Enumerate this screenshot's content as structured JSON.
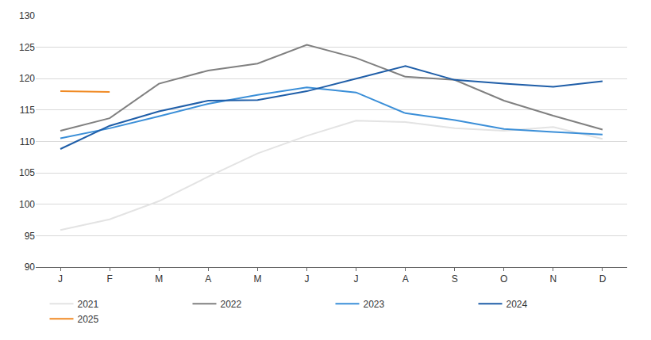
{
  "chart_data": {
    "type": "line",
    "categories": [
      "J",
      "F",
      "M",
      "A",
      "M",
      "J",
      "J",
      "A",
      "S",
      "O",
      "N",
      "D"
    ],
    "series": [
      {
        "name": "2021",
        "color": "#e3e3e3",
        "values": [
          95.9,
          97.6,
          100.5,
          104.4,
          108.1,
          110.9,
          113.3,
          113.1,
          112.1,
          111.7,
          112.3,
          110.4
        ]
      },
      {
        "name": "2022",
        "color": "#808080",
        "values": [
          111.7,
          113.7,
          119.2,
          121.3,
          122.4,
          125.4,
          123.3,
          120.3,
          119.8,
          116.5,
          114.1,
          111.9
        ]
      },
      {
        "name": "2023",
        "color": "#3b8fd8",
        "values": [
          110.5,
          112.1,
          114.0,
          116.0,
          117.4,
          118.6,
          117.8,
          114.5,
          113.4,
          112.0,
          111.5,
          111.1
        ]
      },
      {
        "name": "2024",
        "color": "#1f5ea8",
        "values": [
          108.8,
          112.5,
          114.8,
          116.5,
          116.6,
          118.0,
          120.0,
          122.0,
          119.8,
          119.2,
          118.7,
          119.6
        ]
      },
      {
        "name": "2025",
        "color": "#f08a24",
        "values": [
          118.0,
          117.9,
          null,
          null,
          null,
          null,
          null,
          null,
          null,
          null,
          null,
          null
        ]
      }
    ],
    "ylim": [
      90,
      130
    ],
    "yticks": [
      90,
      95,
      100,
      105,
      110,
      115,
      120,
      125,
      130
    ],
    "grid": true,
    "legend": "bottom"
  }
}
